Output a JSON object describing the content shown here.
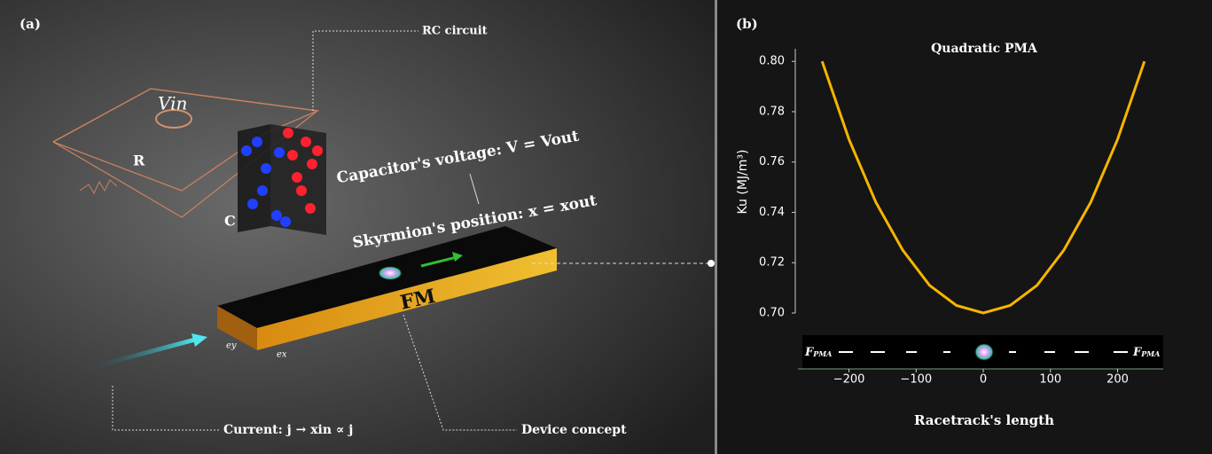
{
  "panel_a": {
    "label": "(a)",
    "rc_circuit": "RC circuit",
    "vin": "Vin",
    "resistor": "R",
    "capacitor": "C",
    "capacitor_voltage": "Capacitor's voltage: V = Vout",
    "skyrmion_position": "Skyrmion's position: x = xout",
    "fm": "FM",
    "current": "Current: j → xin ∝ j",
    "device_concept": "Device concept",
    "ex": "ex",
    "ey": "ey"
  },
  "chart_data": {
    "type": "line",
    "panel_label": "(b)",
    "title": "Quadratic PMA",
    "xlabel": "Racetrack's length",
    "ylabel": "Ku (MJ/m³)",
    "x": [
      -240,
      -200,
      -160,
      -120,
      -80,
      -40,
      0,
      40,
      80,
      120,
      160,
      200,
      240
    ],
    "series": [
      {
        "color": "#f7b500",
        "values": [
          0.8,
          0.769,
          0.744,
          0.725,
          0.711,
          0.703,
          0.7,
          0.703,
          0.711,
          0.725,
          0.744,
          0.769,
          0.8
        ]
      }
    ],
    "xlim": [
      -276,
      268
    ],
    "ylim": [
      0.7,
      0.805
    ],
    "xticks": [
      {
        "value": -200,
        "label": "−200"
      },
      {
        "value": -100,
        "label": "−100"
      },
      0,
      100,
      200
    ],
    "yticks": [
      {
        "value": 0.7,
        "label": "0.70"
      },
      {
        "value": 0.72,
        "label": "0.72"
      },
      {
        "value": 0.74,
        "label": "0.74"
      },
      {
        "value": 0.76,
        "label": "0.76"
      },
      {
        "value": 0.78,
        "label": "0.78"
      },
      {
        "value": 0.8,
        "label": "0.80"
      }
    ],
    "strip_labels": [
      {
        "symbol": "F",
        "subscript": "PMA"
      },
      {
        "symbol": "F",
        "subscript": "PMA"
      }
    ]
  }
}
